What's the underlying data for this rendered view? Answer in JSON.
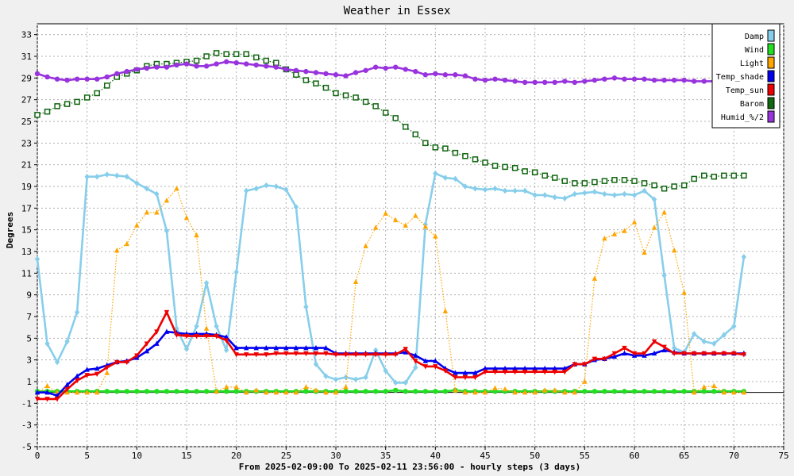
{
  "chart_data": {
    "type": "line",
    "title": "Weather in Essex",
    "xlabel": "From 2025-02-09:00 To 2025-02-11 23:56:00 - hourly steps (3 days)",
    "ylabel": "Degrees",
    "xlim": [
      0,
      75
    ],
    "ylim": [
      -5,
      34
    ],
    "x_ticks": [
      0,
      5,
      10,
      15,
      20,
      25,
      30,
      35,
      40,
      45,
      50,
      55,
      60,
      65,
      70,
      75
    ],
    "y_ticks": [
      -5,
      -3,
      -1,
      1,
      3,
      5,
      7,
      9,
      11,
      13,
      15,
      17,
      19,
      21,
      23,
      25,
      27,
      29,
      31,
      33
    ],
    "grid": true,
    "legend_position": "top-right",
    "series": [
      {
        "name": "Damp",
        "color": "#87ceeb",
        "marker": "diamond",
        "line": "solid",
        "x": [
          0,
          1,
          2,
          3,
          4,
          5,
          6,
          7,
          8,
          9,
          10,
          11,
          12,
          13,
          14,
          15,
          16,
          17,
          18,
          19,
          20,
          21,
          22,
          23,
          24,
          25,
          26,
          27,
          28,
          29,
          30,
          31,
          32,
          33,
          34,
          35,
          36,
          37,
          38,
          39,
          40,
          41,
          42,
          43,
          44,
          45,
          46,
          47,
          48,
          49,
          50,
          51,
          52,
          53,
          54,
          55,
          56,
          57,
          58,
          59,
          60,
          61,
          62,
          63,
          64,
          65,
          66,
          67,
          68,
          69,
          70,
          71
        ],
        "values": [
          12.3,
          4.5,
          2.8,
          4.7,
          7.4,
          19.9,
          19.9,
          20.1,
          20.0,
          19.9,
          19.3,
          18.8,
          18.3,
          14.9,
          5.9,
          4.0,
          6.1,
          10.1,
          6.1,
          3.9,
          11.1,
          18.6,
          18.8,
          19.1,
          19.0,
          18.7,
          17.1,
          7.9,
          2.6,
          1.5,
          1.2,
          1.4,
          1.2,
          1.4,
          3.9,
          2.0,
          0.9,
          0.9,
          2.3,
          15.5,
          20.2,
          19.8,
          19.7,
          19.0,
          18.8,
          18.7,
          18.8,
          18.6,
          18.6,
          18.6,
          18.2,
          18.2,
          18.0,
          17.9,
          18.3,
          18.4,
          18.5,
          18.3,
          18.2,
          18.3,
          18.2,
          18.6,
          17.8,
          10.8,
          4.1,
          3.7,
          5.4,
          4.7,
          4.5,
          5.3,
          6.1,
          12.5
        ]
      },
      {
        "name": "Wind",
        "color": "#22dd22",
        "marker": "circle",
        "line": "solid",
        "x": [
          0,
          1,
          2,
          3,
          4,
          5,
          6,
          7,
          8,
          9,
          10,
          11,
          12,
          13,
          14,
          15,
          16,
          17,
          18,
          19,
          20,
          21,
          22,
          23,
          24,
          25,
          26,
          27,
          28,
          29,
          30,
          31,
          32,
          33,
          34,
          35,
          36,
          37,
          38,
          39,
          40,
          41,
          42,
          43,
          44,
          45,
          46,
          47,
          48,
          49,
          50,
          51,
          52,
          53,
          54,
          55,
          56,
          57,
          58,
          59,
          60,
          61,
          62,
          63,
          64,
          65,
          66,
          67,
          68,
          69,
          70,
          71
        ],
        "values": [
          0.1,
          0.1,
          0.1,
          0.1,
          0.1,
          0.1,
          0.1,
          0.1,
          0.1,
          0.1,
          0.1,
          0.1,
          0.1,
          0.1,
          0.1,
          0.1,
          0.1,
          0.1,
          0.1,
          0.1,
          0.1,
          0.1,
          0.1,
          0.1,
          0.1,
          0.1,
          0.1,
          0.1,
          0.1,
          0.1,
          0.1,
          0.1,
          0.1,
          0.1,
          0.1,
          0.1,
          0.2,
          0.1,
          0.1,
          0.1,
          0.1,
          0.1,
          0.2,
          0.1,
          0.1,
          0.1,
          0.1,
          0.1,
          0.1,
          0.1,
          0.1,
          0.1,
          0.1,
          0.1,
          0.1,
          0.1,
          0.1,
          0.1,
          0.1,
          0.1,
          0.1,
          0.1,
          0.1,
          0.1,
          0.1,
          0.1,
          0.1,
          0.1,
          0.1,
          0.1,
          0.1,
          0.1
        ]
      },
      {
        "name": "Light",
        "color": "#ffa500",
        "marker": "triangle",
        "line": "dotted",
        "x": [
          0,
          1,
          2,
          3,
          4,
          5,
          6,
          7,
          8,
          9,
          10,
          11,
          12,
          13,
          14,
          15,
          16,
          17,
          18,
          19,
          20,
          21,
          22,
          23,
          24,
          25,
          26,
          27,
          28,
          29,
          30,
          31,
          32,
          33,
          34,
          35,
          36,
          37,
          38,
          39,
          40,
          41,
          42,
          43,
          44,
          45,
          46,
          47,
          48,
          49,
          50,
          51,
          52,
          53,
          54,
          55,
          56,
          57,
          58,
          59,
          60,
          61,
          62,
          63,
          64,
          65,
          66,
          67,
          68,
          69,
          70,
          71
        ],
        "values": [
          0.0,
          0.6,
          0.0,
          0.0,
          0.0,
          0.0,
          0.0,
          1.8,
          13.1,
          13.7,
          15.4,
          16.6,
          16.6,
          17.7,
          18.8,
          16.1,
          14.5,
          5.9,
          0.1,
          0.5,
          0.5,
          0.0,
          0.2,
          0.0,
          0.0,
          0.0,
          0.0,
          0.5,
          0.2,
          0.0,
          0.0,
          0.5,
          10.2,
          13.5,
          15.2,
          16.5,
          15.9,
          15.4,
          16.3,
          15.3,
          14.4,
          7.5,
          0.2,
          0.0,
          0.0,
          0.0,
          0.4,
          0.3,
          0.0,
          0.0,
          0.0,
          0.2,
          0.2,
          0.0,
          0.0,
          1.0,
          10.5,
          14.2,
          14.6,
          14.9,
          15.7,
          12.9,
          15.2,
          16.6,
          13.1,
          9.2,
          0.0,
          0.5,
          0.6,
          0.0,
          0.0,
          0.0
        ]
      },
      {
        "name": "Temp_shade",
        "color": "#0000ee",
        "marker": "triangle",
        "line": "solid",
        "x": [
          0,
          1,
          2,
          3,
          4,
          5,
          6,
          7,
          8,
          9,
          10,
          11,
          12,
          13,
          14,
          15,
          16,
          17,
          18,
          19,
          20,
          21,
          22,
          23,
          24,
          25,
          26,
          27,
          28,
          29,
          30,
          31,
          32,
          33,
          34,
          35,
          36,
          37,
          38,
          39,
          40,
          41,
          42,
          43,
          44,
          45,
          46,
          47,
          48,
          49,
          50,
          51,
          52,
          53,
          54,
          55,
          56,
          57,
          58,
          59,
          60,
          61,
          62,
          63,
          64,
          65,
          66,
          67,
          68,
          69,
          70,
          71
        ],
        "values": [
          0.0,
          0.0,
          -0.3,
          0.7,
          1.5,
          2.1,
          2.2,
          2.5,
          2.8,
          2.9,
          3.2,
          3.8,
          4.5,
          5.6,
          5.5,
          5.4,
          5.4,
          5.4,
          5.3,
          5.1,
          4.1,
          4.1,
          4.1,
          4.1,
          4.1,
          4.1,
          4.1,
          4.1,
          4.1,
          4.1,
          3.6,
          3.6,
          3.6,
          3.6,
          3.6,
          3.6,
          3.6,
          3.7,
          3.4,
          2.9,
          2.9,
          2.2,
          1.8,
          1.8,
          1.8,
          2.2,
          2.2,
          2.2,
          2.2,
          2.2,
          2.2,
          2.2,
          2.2,
          2.2,
          2.6,
          2.6,
          3.0,
          3.1,
          3.3,
          3.6,
          3.4,
          3.4,
          3.6,
          3.9,
          3.7,
          3.6,
          3.6,
          3.6,
          3.6,
          3.6,
          3.6,
          3.6
        ]
      },
      {
        "name": "Temp_sun",
        "color": "#ee0000",
        "marker": "triangle-down",
        "line": "solid",
        "x": [
          0,
          1,
          2,
          3,
          4,
          5,
          6,
          7,
          8,
          9,
          10,
          11,
          12,
          13,
          14,
          15,
          16,
          17,
          18,
          19,
          20,
          21,
          22,
          23,
          24,
          25,
          26,
          27,
          28,
          29,
          30,
          31,
          32,
          33,
          34,
          35,
          36,
          37,
          38,
          39,
          40,
          41,
          42,
          43,
          44,
          45,
          46,
          47,
          48,
          49,
          50,
          51,
          52,
          53,
          54,
          55,
          56,
          57,
          58,
          59,
          60,
          61,
          62,
          63,
          64,
          65,
          66,
          67,
          68,
          69,
          70,
          71
        ],
        "values": [
          -0.6,
          -0.6,
          -0.6,
          0.3,
          1.1,
          1.6,
          1.7,
          2.3,
          2.8,
          2.8,
          3.4,
          4.5,
          5.6,
          7.4,
          5.3,
          5.2,
          5.2,
          5.2,
          5.2,
          4.8,
          3.5,
          3.5,
          3.5,
          3.5,
          3.6,
          3.6,
          3.6,
          3.6,
          3.6,
          3.6,
          3.5,
          3.5,
          3.5,
          3.5,
          3.5,
          3.5,
          3.5,
          4.0,
          2.9,
          2.4,
          2.4,
          2.0,
          1.4,
          1.4,
          1.4,
          1.9,
          1.9,
          1.9,
          1.9,
          1.9,
          1.9,
          1.9,
          1.9,
          1.9,
          2.6,
          2.6,
          3.1,
          3.1,
          3.6,
          4.1,
          3.6,
          3.6,
          4.7,
          4.2,
          3.6,
          3.6,
          3.6,
          3.6,
          3.6,
          3.6,
          3.6,
          3.5
        ]
      },
      {
        "name": "Barom",
        "color": "#116611",
        "marker": "square",
        "line": "dotted",
        "x": [
          0,
          1,
          2,
          3,
          4,
          5,
          6,
          7,
          8,
          9,
          10,
          11,
          12,
          13,
          14,
          15,
          16,
          17,
          18,
          19,
          20,
          21,
          22,
          23,
          24,
          25,
          26,
          27,
          28,
          29,
          30,
          31,
          32,
          33,
          34,
          35,
          36,
          37,
          38,
          39,
          40,
          41,
          42,
          43,
          44,
          45,
          46,
          47,
          48,
          49,
          50,
          51,
          52,
          53,
          54,
          55,
          56,
          57,
          58,
          59,
          60,
          61,
          62,
          63,
          64,
          65,
          66,
          67,
          68,
          69,
          70,
          71
        ],
        "values": [
          25.6,
          25.9,
          26.4,
          26.6,
          26.8,
          27.2,
          27.6,
          28.3,
          29.1,
          29.4,
          29.7,
          30.1,
          30.3,
          30.3,
          30.4,
          30.5,
          30.6,
          31.0,
          31.3,
          31.2,
          31.2,
          31.2,
          30.9,
          30.6,
          30.4,
          29.8,
          29.3,
          28.8,
          28.5,
          28.1,
          27.6,
          27.4,
          27.2,
          26.8,
          26.4,
          25.8,
          25.3,
          24.5,
          23.8,
          23.0,
          22.6,
          22.5,
          22.1,
          21.8,
          21.5,
          21.2,
          20.9,
          20.8,
          20.7,
          20.4,
          20.3,
          20.0,
          19.8,
          19.5,
          19.3,
          19.3,
          19.4,
          19.5,
          19.6,
          19.6,
          19.5,
          19.3,
          19.1,
          18.8,
          19.0,
          19.1,
          19.7,
          20.0,
          19.9,
          20.0,
          20.0,
          20.0
        ]
      },
      {
        "name": "Humid_%/2",
        "color": "#9933dd",
        "marker": "circle",
        "line": "solid",
        "x": [
          0,
          1,
          2,
          3,
          4,
          5,
          6,
          7,
          8,
          9,
          10,
          11,
          12,
          13,
          14,
          15,
          16,
          17,
          18,
          19,
          20,
          21,
          22,
          23,
          24,
          25,
          26,
          27,
          28,
          29,
          30,
          31,
          32,
          33,
          34,
          35,
          36,
          37,
          38,
          39,
          40,
          41,
          42,
          43,
          44,
          45,
          46,
          47,
          48,
          49,
          50,
          51,
          52,
          53,
          54,
          55,
          56,
          57,
          58,
          59,
          60,
          61,
          62,
          63,
          64,
          65,
          66,
          67,
          68,
          69,
          70,
          71
        ],
        "values": [
          29.4,
          29.1,
          28.9,
          28.8,
          28.9,
          28.9,
          28.9,
          29.1,
          29.4,
          29.6,
          29.8,
          29.9,
          30.0,
          30.0,
          30.2,
          30.3,
          30.1,
          30.1,
          30.3,
          30.5,
          30.4,
          30.3,
          30.2,
          30.1,
          30.0,
          29.8,
          29.7,
          29.6,
          29.5,
          29.4,
          29.3,
          29.2,
          29.5,
          29.7,
          30.0,
          29.9,
          30.0,
          29.8,
          29.6,
          29.3,
          29.4,
          29.3,
          29.3,
          29.2,
          28.9,
          28.8,
          28.9,
          28.8,
          28.7,
          28.6,
          28.6,
          28.6,
          28.6,
          28.7,
          28.6,
          28.7,
          28.8,
          28.9,
          29.0,
          28.9,
          28.9,
          28.9,
          28.8,
          28.8,
          28.8,
          28.8,
          28.7,
          28.7,
          28.7,
          28.7,
          28.7,
          28.6
        ]
      }
    ]
  }
}
